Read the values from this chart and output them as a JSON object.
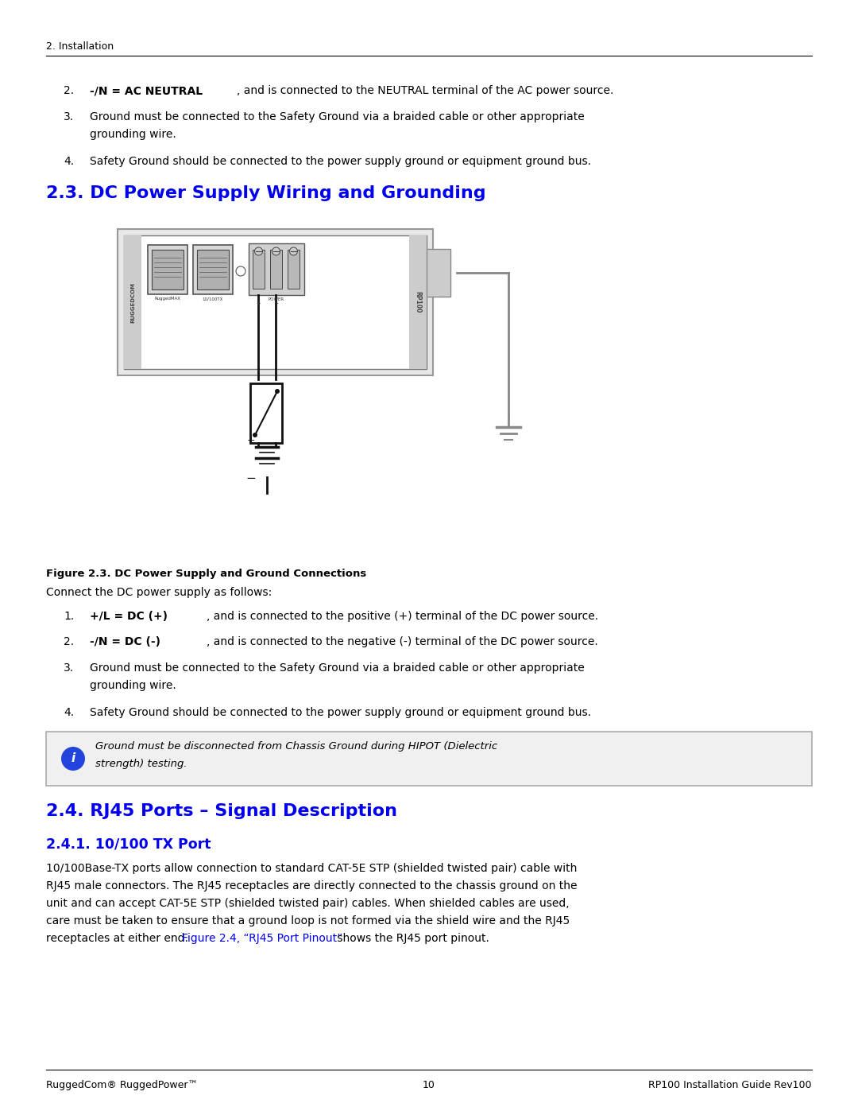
{
  "page_width": 10.8,
  "page_height": 13.97,
  "bg_color": "#ffffff",
  "header_text": "2. Installation",
  "blue_color": "#0000EE",
  "black_color": "#000000",
  "dark_gray": "#444444",
  "med_gray": "#888888",
  "light_gray": "#cccccc",
  "section_23_title": "2.3. DC Power Supply Wiring and Grounding",
  "section_24_title": "2.4. RJ45 Ports – Signal Description",
  "section_241_title": "2.4.1. 10/100 TX Port",
  "footer_left": "RuggedCom® RuggedPower™",
  "footer_center": "10",
  "footer_right": "RP100 Installation Guide Rev100",
  "item2_bold": "-/N = AC NEUTRAL",
  "item2_rest": ", and is connected to the NEUTRAL terminal of the AC power source.",
  "item3_line1": "Ground must be connected to the Safety Ground via a braided cable or other appropriate",
  "item3_line2": "grounding wire.",
  "item4_text": "Safety Ground should be connected to the power supply ground or equipment ground bus.",
  "fig_caption": "Figure 2.3. DC Power Supply and Ground Connections",
  "connect_text": "Connect the DC power supply as follows:",
  "dc_item1_bold": "+/L = DC (+)",
  "dc_item1_rest": ", and is connected to the positive (+) terminal of the DC power source.",
  "dc_item2_bold": "-/N = DC (-)",
  "dc_item2_rest": ", and is connected to the negative (-) terminal of the DC power source.",
  "dc_item3_line1": "Ground must be connected to the Safety Ground via a braided cable or other appropriate",
  "dc_item3_line2": "grounding wire.",
  "dc_item4_text": "Safety Ground should be connected to the power supply ground or equipment ground bus.",
  "note_line1": "Ground must be disconnected from Chassis Ground during HIPOT (Dielectric",
  "note_line2": "strength) testing.",
  "tx_line1": "10/100Base-TX ports allow connection to standard CAT-5E STP (shielded twisted pair) cable with",
  "tx_line2": "RJ45 male connectors. The RJ45 receptacles are directly connected to the chassis ground on the",
  "tx_line3": "unit and can accept CAT-5E STP (shielded twisted pair) cables. When shielded cables are used,",
  "tx_line4": "care must be taken to ensure that a ground loop is not formed via the shield wire and the RJ45",
  "tx_line5_pre": "receptacles at either end. ",
  "tx_line5_link": "Figure 2.4, “RJ45 Port Pinout”",
  "tx_line5_post": " shows the RJ45 port pinout."
}
